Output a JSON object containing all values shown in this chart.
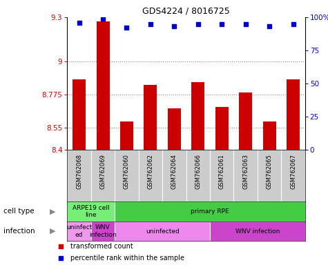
{
  "title": "GDS4224 / 8016725",
  "samples": [
    "GSM762068",
    "GSM762069",
    "GSM762060",
    "GSM762062",
    "GSM762064",
    "GSM762066",
    "GSM762061",
    "GSM762063",
    "GSM762065",
    "GSM762067"
  ],
  "transformed_count": [
    8.88,
    9.27,
    8.59,
    8.84,
    8.68,
    8.86,
    8.69,
    8.79,
    8.59,
    8.88
  ],
  "percentile_rank": [
    96,
    99,
    92,
    95,
    93,
    95,
    95,
    95,
    93,
    95
  ],
  "ylim_left": [
    8.4,
    9.3
  ],
  "yticks_left": [
    8.4,
    8.55,
    8.775,
    9.0,
    9.3
  ],
  "ytick_labels_left": [
    "8.4",
    "8.55",
    "8.775",
    "9",
    "9.3"
  ],
  "ylim_right": [
    0,
    100
  ],
  "yticks_right": [
    0,
    25,
    50,
    75,
    100
  ],
  "ytick_labels_right": [
    "0",
    "25",
    "50",
    "75",
    "100%"
  ],
  "bar_color": "#cc0000",
  "dot_color": "#0000cc",
  "cell_type_groups": [
    {
      "label": "ARPE19 cell\nline",
      "start": 0,
      "end": 2,
      "color": "#77ee77"
    },
    {
      "label": "primary RPE",
      "start": 2,
      "end": 10,
      "color": "#44cc44"
    }
  ],
  "infection_groups": [
    {
      "label": "uninfect\ned",
      "start": 0,
      "end": 1,
      "color": "#ee99ee"
    },
    {
      "label": "WNV\ninfection",
      "start": 1,
      "end": 2,
      "color": "#cc44cc"
    },
    {
      "label": "uninfected",
      "start": 2,
      "end": 6,
      "color": "#ee88ee"
    },
    {
      "label": "WNV infection",
      "start": 6,
      "end": 10,
      "color": "#cc44cc"
    }
  ],
  "legend_items": [
    {
      "label": "transformed count",
      "color": "#cc0000"
    },
    {
      "label": "percentile rank within the sample",
      "color": "#0000cc"
    }
  ],
  "left_label_color": "#cc0000",
  "right_label_color": "#0000cc",
  "grid_color": "#888888",
  "bg_color": "#ffffff",
  "xtick_bg_color": "#cccccc",
  "cell_type_row_label": "cell type",
  "infection_row_label": "infection",
  "arrow_color": "#888888"
}
